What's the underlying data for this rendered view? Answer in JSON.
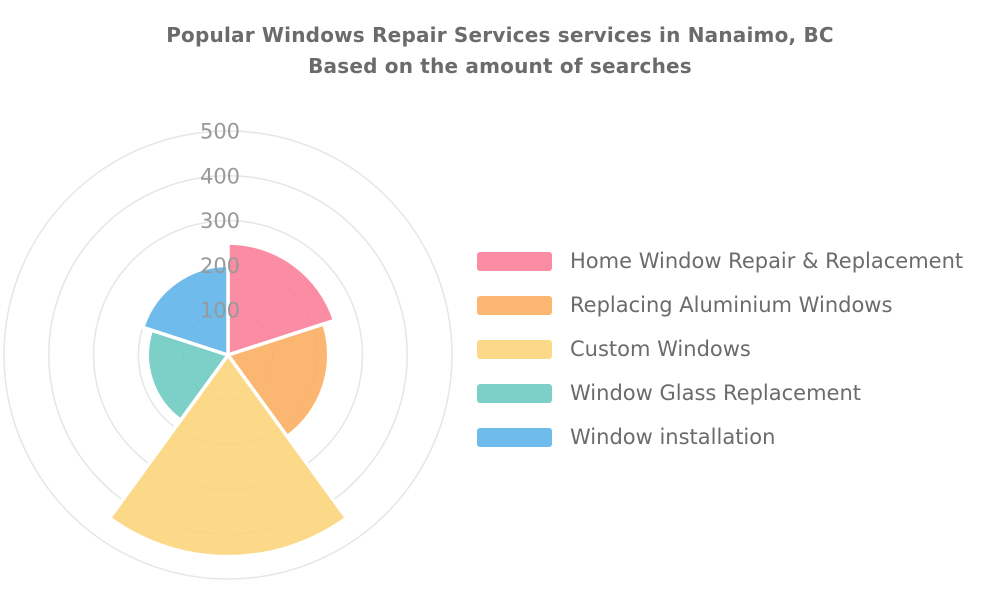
{
  "title": {
    "line1": "Popular Windows Repair Services services in Nanaimo, BC",
    "line2": "Based on the amount of searches"
  },
  "chart_data": {
    "type": "polar-area",
    "title": "Popular Windows Repair Services services in Nanaimo, BC",
    "subtitle": "Based on the amount of searches",
    "categories": [
      "Home Window Repair & Replacement",
      "Replacing Aluminium Windows",
      "Custom Windows",
      "Window Glass Replacement",
      "Window installation"
    ],
    "series": [
      {
        "label": "Home Window Repair & Replacement",
        "value": 250,
        "color": "#F97C96"
      },
      {
        "label": "Replacing Aluminium Windows",
        "value": 225,
        "color": "#FBAC5F"
      },
      {
        "label": "Custom Windows",
        "value": 450,
        "color": "#FBD477"
      },
      {
        "label": "Window Glass Replacement",
        "value": 180,
        "color": "#6BCABF"
      },
      {
        "label": "Window installation",
        "value": 200,
        "color": "#5BB3E9"
      }
    ],
    "radial_axis": {
      "ticks": [
        100,
        200,
        300,
        400,
        500
      ],
      "min": 0,
      "max": 500,
      "tick_color": "#999999"
    },
    "angle_axis": {
      "start_deg": 0,
      "clockwise": true,
      "equal_sectors": true,
      "sector_deg": 72
    },
    "grid": {
      "on": true,
      "color": "#e6e6e6"
    },
    "slice_border": {
      "color": "#ffffff",
      "width": 3.5
    },
    "slice_opacity": 0.88,
    "legend_position": "right",
    "title_color": "#6b6b6b",
    "legend_text_color": "#6b6b6b",
    "background_color": "#ffffff"
  }
}
